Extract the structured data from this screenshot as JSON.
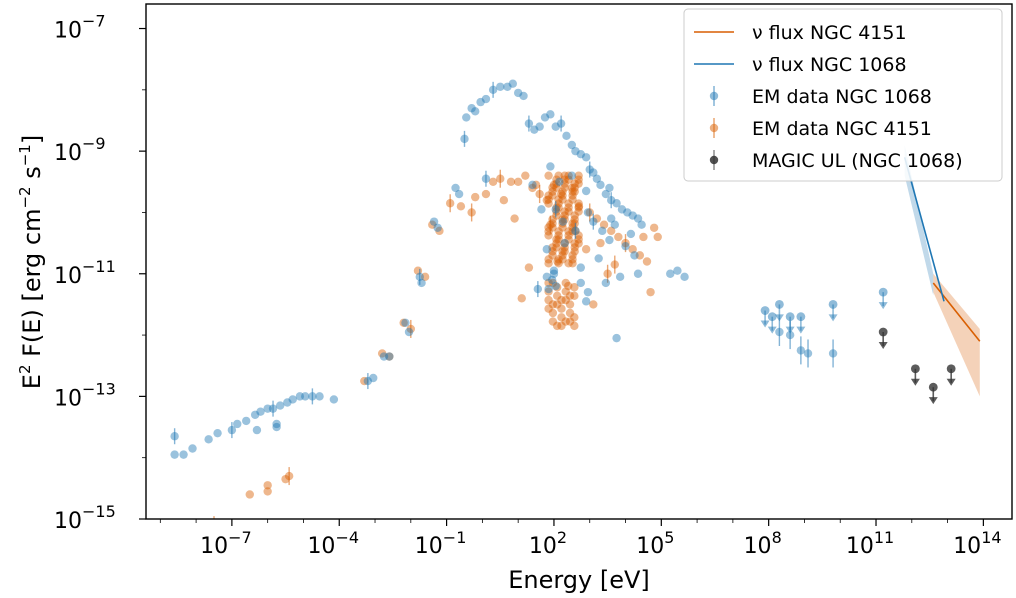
{
  "chart_data": {
    "type": "scatter",
    "title": "",
    "xlabel": "Energy [eV]",
    "ylabel_main": "E",
    "ylabel_rest": " F(E) [erg cm",
    "ylabel_unit_s": " s",
    "ylabel_close": "]",
    "sup_2": "2",
    "sup_m2": "−2",
    "sup_m1": "−1",
    "x_log": true,
    "y_log": true,
    "xlim_log10": [
      -9.4,
      14.8
    ],
    "ylim_log10": [
      -15,
      -6.6
    ],
    "x_ticks": [
      {
        "base": "10",
        "exp": "−7",
        "log": -7
      },
      {
        "base": "10",
        "exp": "−4",
        "log": -4
      },
      {
        "base": "10",
        "exp": "−1",
        "log": -1
      },
      {
        "base": "10",
        "exp": "2",
        "log": 2
      },
      {
        "base": "10",
        "exp": "5",
        "log": 5
      },
      {
        "base": "10",
        "exp": "8",
        "log": 8
      },
      {
        "base": "10",
        "exp": "11",
        "log": 11
      },
      {
        "base": "10",
        "exp": "14",
        "log": 14
      }
    ],
    "y_ticks": [
      {
        "base": "10",
        "exp": "−7",
        "log": -7
      },
      {
        "base": "10",
        "exp": "−9",
        "log": -9
      },
      {
        "base": "10",
        "exp": "−11",
        "log": -11
      },
      {
        "base": "10",
        "exp": "−13",
        "log": -13
      },
      {
        "base": "10",
        "exp": "−15",
        "log": -15
      }
    ],
    "legend_position": "top-right",
    "colors": {
      "ngc1068": "#1f77b4",
      "ngc4151": "#d95f02",
      "magic": "#333333"
    },
    "legend": [
      {
        "label": "ν flux NGC 4151",
        "kind": "line",
        "color": "#d95f02"
      },
      {
        "label": "ν flux NGC 1068",
        "kind": "line",
        "color": "#1f77b4"
      },
      {
        "label": "EM data NGC 1068",
        "kind": "point",
        "color": "#1f77b4"
      },
      {
        "label": "EM data NGC 4151",
        "kind": "point",
        "color": "#d95f02"
      },
      {
        "label": "MAGIC UL (NGC 1068)",
        "kind": "point",
        "color": "#333333"
      }
    ],
    "series": [
      {
        "name": "EM data NGC 1068",
        "note": "points as [log10 E (eV), log10 E2F (erg cm-2 s-1)]",
        "points": [
          [
            -8.5,
            -13.6
          ],
          [
            -8.5,
            -13.9
          ],
          [
            -8.3,
            -13.95
          ],
          [
            -8.1,
            -13.9
          ],
          [
            -7.6,
            -13.7
          ],
          [
            -7.4,
            -13.6
          ],
          [
            -7.0,
            -13.5
          ],
          [
            -6.8,
            -13.45
          ],
          [
            -6.5,
            -13.35
          ],
          [
            -6.4,
            -13.3
          ],
          [
            -6.2,
            -13.25
          ],
          [
            -6.0,
            -13.25
          ],
          [
            -5.9,
            -13.2
          ],
          [
            -5.8,
            -13.15
          ],
          [
            -5.6,
            -13.1
          ],
          [
            -5.4,
            -13.05
          ],
          [
            -5.2,
            -13.0
          ],
          [
            -5.0,
            -12.95
          ],
          [
            -4.8,
            -12.95
          ],
          [
            -4.6,
            -13.0
          ],
          [
            -4.2,
            -13.05
          ],
          [
            -5.7,
            -13.4
          ],
          [
            -5.7,
            -13.5
          ],
          [
            -6.2,
            -13.5
          ],
          [
            -3.3,
            -12.75
          ],
          [
            -3.1,
            -12.7
          ],
          [
            -2.8,
            -12.35
          ],
          [
            -2.6,
            -12.3
          ],
          [
            -2.2,
            -11.75
          ],
          [
            -2.1,
            -11.95
          ],
          [
            -1.8,
            -11.05
          ],
          [
            -1.7,
            -11.1
          ],
          [
            -1.3,
            -10.15
          ],
          [
            -1.2,
            -10.25
          ],
          [
            -0.8,
            -9.6
          ],
          [
            -0.7,
            -9.7
          ],
          [
            -0.4,
            -9.2
          ],
          [
            -0.3,
            -8.25
          ],
          [
            -0.1,
            -8.2
          ],
          [
            0.1,
            -8.15
          ],
          [
            0.3,
            -8.0
          ],
          [
            0.5,
            -7.95
          ],
          [
            0.7,
            -7.9
          ],
          [
            0.8,
            -7.85
          ],
          [
            0.9,
            -7.95
          ],
          [
            1.1,
            -8.1
          ],
          [
            1.3,
            -8.0
          ],
          [
            1.5,
            -8.3
          ],
          [
            1.6,
            -8.35
          ],
          [
            1.8,
            -8.25
          ],
          [
            1.9,
            -8.5
          ],
          [
            2.1,
            -8.6
          ],
          [
            2.3,
            -8.55
          ],
          [
            2.5,
            -8.4
          ],
          [
            2.7,
            -8.8
          ],
          [
            2.9,
            -8.9
          ],
          [
            3.1,
            -8.95
          ],
          [
            3.3,
            -9.1
          ],
          [
            3.5,
            -9.3
          ],
          [
            3.7,
            -9.25
          ],
          [
            3.9,
            -9.45
          ],
          [
            4.1,
            -9.5
          ],
          [
            4.3,
            -9.55
          ],
          [
            4.5,
            -9.7
          ],
          [
            4.7,
            -9.8
          ],
          [
            4.9,
            -9.9
          ],
          [
            -0.2,
            -9.4
          ],
          [
            -0.4,
            -8.3
          ],
          [
            0.0,
            -8.4
          ],
          [
            1.0,
            -8.9
          ],
          [
            2.0,
            -9.0
          ],
          [
            3.0,
            -9.3
          ],
          [
            0.6,
            -9.4
          ],
          [
            1.4,
            -9.6
          ],
          [
            2.2,
            -9.6
          ],
          [
            2.6,
            -9.9
          ],
          [
            3.4,
            -10.2
          ],
          [
            3.8,
            -10.1
          ],
          [
            1.7,
            -10.1
          ],
          [
            2.4,
            -10.3
          ],
          [
            3.2,
            -10.5
          ],
          [
            1.2,
            -10.4
          ],
          [
            3.6,
            -10.6
          ],
          [
            4.0,
            -10.4
          ],
          [
            2.8,
            -10.0
          ],
          [
            3.0,
            -9.7
          ],
          [
            4.2,
            -10.0
          ],
          [
            4.6,
            -10.2
          ],
          [
            2.0,
            -10.9
          ],
          [
            3.9,
            -10.7
          ],
          [
            0.9,
            -8.9
          ],
          [
            1.5,
            -8.6
          ],
          [
            2.7,
            -9.1
          ],
          [
            1.1,
            -8.4
          ],
          [
            1.9,
            -8.0
          ],
          [
            0.3,
            -8.2
          ],
          [
            7.8,
            -11.1
          ],
          [
            8.0,
            -11.15
          ],
          [
            8.2,
            -11.2
          ],
          [
            8.4,
            -11.0
          ],
          [
            8.6,
            -11.1
          ],
          [
            9.0,
            -11.3
          ],
          [
            9.2,
            -11.2
          ],
          [
            9.6,
            -11.0
          ],
          [
            8.8,
            -11.4
          ],
          [
            7.0,
            -11.0
          ],
          [
            7.2,
            -11.05
          ],
          [
            8.1,
            -11.25
          ],
          [
            8.3,
            -10.9
          ],
          [
            8.7,
            -11.05
          ],
          [
            9.3,
            -10.95
          ],
          [
            9.0,
            -11.55
          ],
          [
            9.8,
            -11.1
          ],
          [
            8.5,
            -11.6
          ],
          [
            7.6,
            -11.5
          ],
          [
            9.5,
            -11.3
          ],
          [
            8.9,
            -11.75
          ],
          [
            8.2,
            -12.2
          ],
          [
            7.4,
            -11.25
          ],
          [
            8.6,
            -12.0
          ]
        ]
      },
      {
        "name": "EM data NGC 4151",
        "points": [
          [
            -7.5,
            -15.1
          ],
          [
            -6.5,
            -14.6
          ],
          [
            -6.0,
            -14.45
          ],
          [
            -6.0,
            -14.55
          ],
          [
            -5.5,
            -14.35
          ],
          [
            -5.4,
            -14.3
          ],
          [
            -3.3,
            -12.75
          ],
          [
            -2.8,
            -12.3
          ],
          [
            -2.6,
            -12.35
          ],
          [
            -2.2,
            -11.8
          ],
          [
            -2.0,
            -11.9
          ],
          [
            -1.8,
            -10.95
          ],
          [
            -1.6,
            -11.05
          ],
          [
            -1.4,
            -10.2
          ],
          [
            -1.2,
            -10.3
          ],
          [
            -0.9,
            -9.85
          ],
          [
            -0.6,
            -9.9
          ],
          [
            -0.2,
            -9.75
          ],
          [
            0.1,
            -9.7
          ],
          [
            0.3,
            -9.5
          ],
          [
            0.5,
            -9.45
          ],
          [
            0.8,
            -9.5
          ],
          [
            1.0,
            -9.5
          ],
          [
            1.2,
            -9.4
          ],
          [
            1.4,
            -9.6
          ],
          [
            1.6,
            -9.7
          ],
          [
            1.8,
            -9.8
          ],
          [
            2.0,
            -9.55
          ],
          [
            2.3,
            -9.4
          ],
          [
            2.5,
            -9.6
          ],
          [
            -0.3,
            -10.0
          ],
          [
            0.6,
            -9.8
          ],
          [
            1.5,
            -9.55
          ],
          [
            2.2,
            -9.7
          ],
          [
            2.7,
            -9.9
          ],
          [
            3.0,
            -10.0
          ],
          [
            3.2,
            -10.1
          ],
          [
            3.4,
            -10.2
          ],
          [
            3.6,
            -10.3
          ],
          [
            3.8,
            -10.4
          ],
          [
            4.0,
            -10.5
          ],
          [
            4.2,
            -10.6
          ],
          [
            4.4,
            -10.7
          ],
          [
            4.6,
            -10.8
          ],
          [
            0.9,
            -10.1
          ],
          [
            1.9,
            -10.2
          ],
          [
            2.6,
            -10.3
          ],
          [
            3.3,
            -10.5
          ],
          [
            4.8,
            -10.25
          ],
          [
            4.9,
            -10.4
          ],
          [
            3.7,
            -10.85
          ],
          [
            2.9,
            -10.6
          ],
          [
            1.3,
            -10.9
          ],
          [
            2.1,
            -10.8
          ],
          [
            4.5,
            -10.4
          ],
          [
            3.5,
            -11.0
          ],
          [
            2.4,
            -11.2
          ],
          [
            1.1,
            -11.4
          ],
          [
            4.7,
            -11.3
          ],
          [
            3.1,
            -11.5
          ]
        ]
      },
      {
        "name": "MAGIC UL (NGC 1068)",
        "points": [
          [
            11.2,
            -11.95
          ],
          [
            12.1,
            -12.55
          ],
          [
            12.6,
            -12.85
          ],
          [
            13.1,
            -12.55
          ]
        ]
      }
    ]
  },
  "blue_cluster": [
    [
      -8.6,
      -13.65
    ],
    [
      -8.6,
      -13.95
    ],
    [
      -8.35,
      -13.95
    ],
    [
      -8.1,
      -13.85
    ],
    [
      -7.65,
      -13.7
    ],
    [
      -7.4,
      -13.6
    ],
    [
      -7.0,
      -13.55
    ],
    [
      -6.85,
      -13.45
    ],
    [
      -6.6,
      -13.4
    ],
    [
      -6.35,
      -13.3
    ],
    [
      -6.2,
      -13.25
    ],
    [
      -6.0,
      -13.2
    ],
    [
      -5.85,
      -13.2
    ],
    [
      -5.65,
      -13.15
    ],
    [
      -5.45,
      -13.1
    ],
    [
      -5.3,
      -13.05
    ],
    [
      -5.1,
      -13.0
    ],
    [
      -4.95,
      -13.0
    ],
    [
      -4.75,
      -13.0
    ],
    [
      -4.55,
      -13.0
    ],
    [
      -4.15,
      -13.05
    ],
    [
      -5.75,
      -13.45
    ],
    [
      -5.75,
      -13.5
    ],
    [
      -6.3,
      -13.55
    ],
    [
      -3.2,
      -12.75
    ],
    [
      -3.05,
      -12.7
    ],
    [
      -2.75,
      -12.35
    ],
    [
      -2.6,
      -12.35
    ],
    [
      -2.15,
      -11.8
    ],
    [
      -2.05,
      -11.95
    ],
    [
      -1.75,
      -11.05
    ],
    [
      -1.7,
      -11.15
    ],
    [
      -1.35,
      -10.15
    ],
    [
      -1.25,
      -10.25
    ],
    [
      -0.75,
      -9.6
    ],
    [
      -0.65,
      -9.7
    ],
    [
      -0.5,
      -8.8
    ],
    [
      -0.45,
      -8.45
    ],
    [
      -0.3,
      -8.3
    ],
    [
      -0.2,
      -8.35
    ],
    [
      -0.05,
      -8.2
    ],
    [
      0.1,
      -8.15
    ],
    [
      0.3,
      -8.0
    ],
    [
      0.5,
      -7.95
    ],
    [
      0.7,
      -7.95
    ],
    [
      0.85,
      -7.9
    ],
    [
      1.0,
      -8.05
    ],
    [
      1.15,
      -8.1
    ],
    [
      1.3,
      -8.55
    ],
    [
      1.45,
      -8.65
    ],
    [
      1.6,
      -8.6
    ],
    [
      1.75,
      -8.45
    ],
    [
      1.9,
      -8.4
    ],
    [
      2.05,
      -8.6
    ],
    [
      2.2,
      -8.55
    ],
    [
      2.35,
      -8.75
    ],
    [
      2.5,
      -8.9
    ],
    [
      2.6,
      -9.0
    ],
    [
      2.75,
      -9.05
    ],
    [
      2.9,
      -9.1
    ],
    [
      3.0,
      -9.3
    ],
    [
      3.1,
      -9.35
    ],
    [
      3.2,
      -9.45
    ],
    [
      3.3,
      -9.55
    ],
    [
      3.45,
      -9.7
    ],
    [
      3.55,
      -9.6
    ],
    [
      3.6,
      -9.8
    ],
    [
      3.75,
      -9.85
    ],
    [
      3.9,
      -9.95
    ],
    [
      4.05,
      -10.0
    ],
    [
      4.2,
      -10.05
    ],
    [
      4.35,
      -10.1
    ],
    [
      0.1,
      -9.45
    ],
    [
      1.4,
      -9.55
    ],
    [
      1.9,
      -9.25
    ],
    [
      2.15,
      -9.5
    ],
    [
      2.5,
      -9.4
    ],
    [
      2.9,
      -9.65
    ],
    [
      3.1,
      -10.15
    ],
    [
      3.35,
      -10.3
    ],
    [
      3.55,
      -10.45
    ],
    [
      3.7,
      -10.2
    ],
    [
      4.0,
      -10.55
    ],
    [
      4.25,
      -10.7
    ],
    [
      2.6,
      -10.3
    ],
    [
      2.3,
      -10.5
    ],
    [
      1.8,
      -10.6
    ],
    [
      2.75,
      -10.9
    ],
    [
      3.25,
      -10.75
    ],
    [
      4.15,
      -10.35
    ],
    [
      1.55,
      -11.25
    ],
    [
      2.0,
      -10.95
    ],
    [
      2.9,
      -11.45
    ],
    [
      3.45,
      -11.15
    ],
    [
      3.85,
      -11.05
    ],
    [
      4.35,
      -11.0
    ],
    [
      2.05,
      -9.95
    ],
    [
      2.95,
      -10.0
    ],
    [
      3.6,
      -10.1
    ],
    [
      4.45,
      -10.2
    ],
    [
      1.65,
      -9.95
    ],
    [
      2.25,
      -10.15
    ]
  ]
}
